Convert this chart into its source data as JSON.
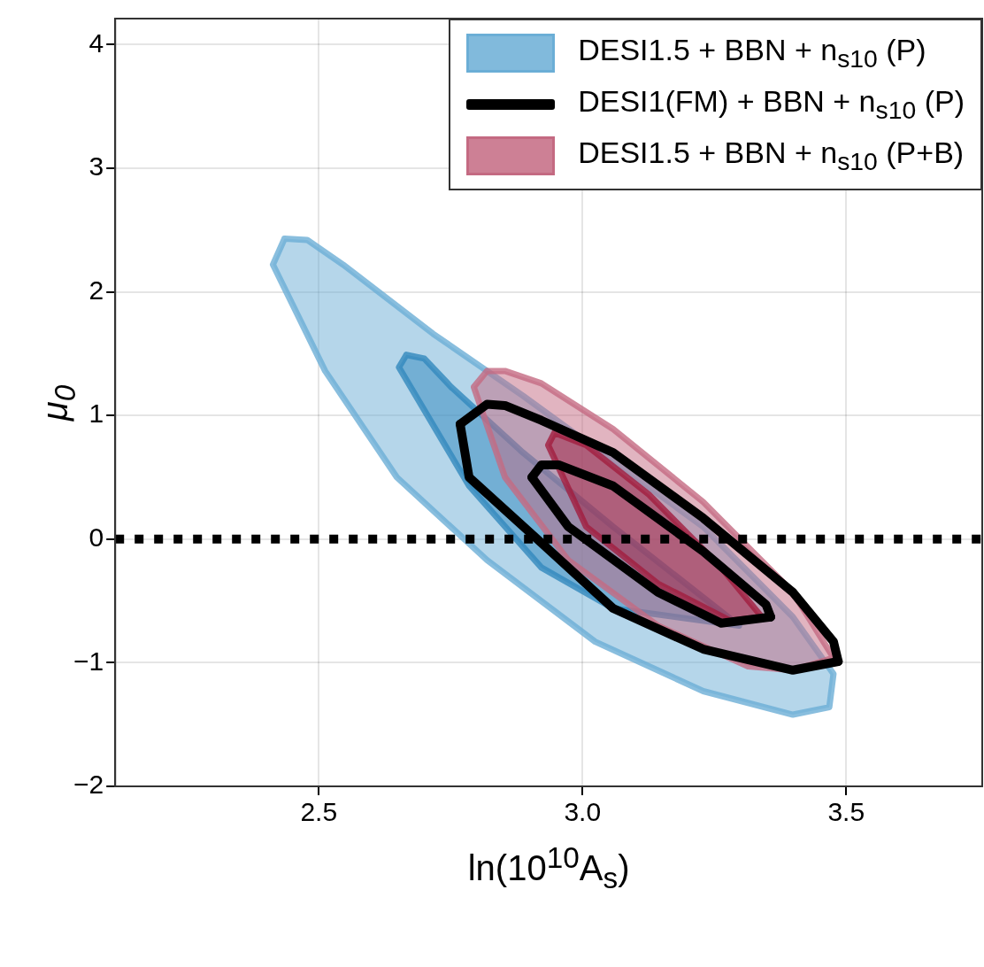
{
  "chart_data": {
    "type": "area",
    "xlabel": "ln(10$^{10}$A$_{s}$)",
    "ylabel": "μ$_{0}$",
    "xlim": [
      2.114,
      3.758
    ],
    "ylim": [
      -2,
      4.21
    ],
    "xticks": [
      2.5,
      {
        "value": 3,
        "label": "3.0"
      },
      3.5
    ],
    "yticks": [
      -2,
      -1,
      0,
      1,
      2,
      3,
      4
    ],
    "grid": true,
    "legend": "top right",
    "series": [
      {
        "name": "DESI1.5 + BBN + n$_{s10}$ (P)",
        "type": "area",
        "color": "#6baed6",
        "x": [
          2.435,
          2.413,
          2.512,
          2.648,
          2.819,
          3.024,
          3.229,
          3.399,
          3.468,
          3.476,
          3.399,
          3.229,
          3.058,
          2.887,
          2.717,
          2.546,
          2.478,
          2.435
        ],
        "values": [
          2.43,
          2.22,
          1.36,
          0.5,
          -0.17,
          -0.83,
          -1.23,
          -1.42,
          -1.36,
          -1.09,
          -0.63,
          0.1,
          0.63,
          1.16,
          1.66,
          2.22,
          2.42,
          2.43
        ]
      },
      {
        "type": "area",
        "color": "#3288bd",
        "x": [
          2.666,
          2.652,
          2.785,
          2.922,
          3.058,
          3.297,
          3.058,
          2.887,
          2.751,
          2.7,
          2.666
        ],
        "values": [
          1.49,
          1.39,
          0.43,
          -0.23,
          -0.56,
          -0.7,
          0.1,
          0.7,
          1.23,
          1.46,
          1.49
        ]
      },
      {
        "name": "DESI1(FM) + BBN + n$_{s10}$ (P)",
        "type": "line",
        "color": "#000000",
        "x": [
          2.768,
          2.819,
          2.853,
          2.922,
          3.058,
          3.229,
          3.399,
          3.476,
          3.485
        ],
        "values": [
          0.93,
          1.09,
          1.08,
          0.96,
          0.7,
          0.17,
          -0.43,
          -0.83,
          -0.99
        ]
      },
      {
        "type": "line",
        "color": "#000000",
        "x": [
          2.768,
          2.785,
          2.922,
          3.058,
          3.229,
          3.399,
          3.485
        ],
        "values": [
          0.93,
          0.5,
          -0.03,
          -0.56,
          -0.89,
          -1.06,
          -0.99
        ]
      },
      {
        "type": "line",
        "color": "#000000",
        "x": [
          2.904,
          2.922,
          2.955,
          3.058,
          3.229,
          3.348,
          3.357
        ],
        "values": [
          0.5,
          0.6,
          0.6,
          0.43,
          -0.1,
          -0.53,
          -0.63
        ]
      },
      {
        "type": "line",
        "color": "#000000",
        "x": [
          2.904,
          2.973,
          3.143,
          3.263,
          3.357
        ],
        "values": [
          0.5,
          0.1,
          -0.43,
          -0.68,
          -0.63
        ]
      },
      {
        "name": "DESI1.5 + BBN + n$_{s10}$ (P+B)",
        "type": "area",
        "color": "#c46a82",
        "x": [
          2.819,
          2.794,
          2.853,
          2.973,
          3.143,
          3.314,
          3.399,
          3.476,
          3.399,
          3.229,
          3.058,
          2.922,
          2.853,
          2.819
        ],
        "values": [
          1.36,
          1.23,
          0.5,
          -0.17,
          -0.7,
          -1.03,
          -1.06,
          -0.96,
          -0.43,
          0.3,
          0.89,
          1.26,
          1.36,
          1.36
        ]
      },
      {
        "type": "area",
        "color": "#a11d3f",
        "x": [
          2.947,
          2.935,
          3.007,
          3.143,
          3.28,
          3.34,
          3.263,
          3.126,
          3.007,
          2.947
        ],
        "values": [
          0.86,
          0.76,
          0.1,
          -0.36,
          -0.66,
          -0.63,
          -0.23,
          0.36,
          0.76,
          0.86
        ]
      }
    ],
    "ref_lines": [
      {
        "axis": "y",
        "value": 0,
        "color": "#000000",
        "line_style": "dotted"
      }
    ]
  }
}
